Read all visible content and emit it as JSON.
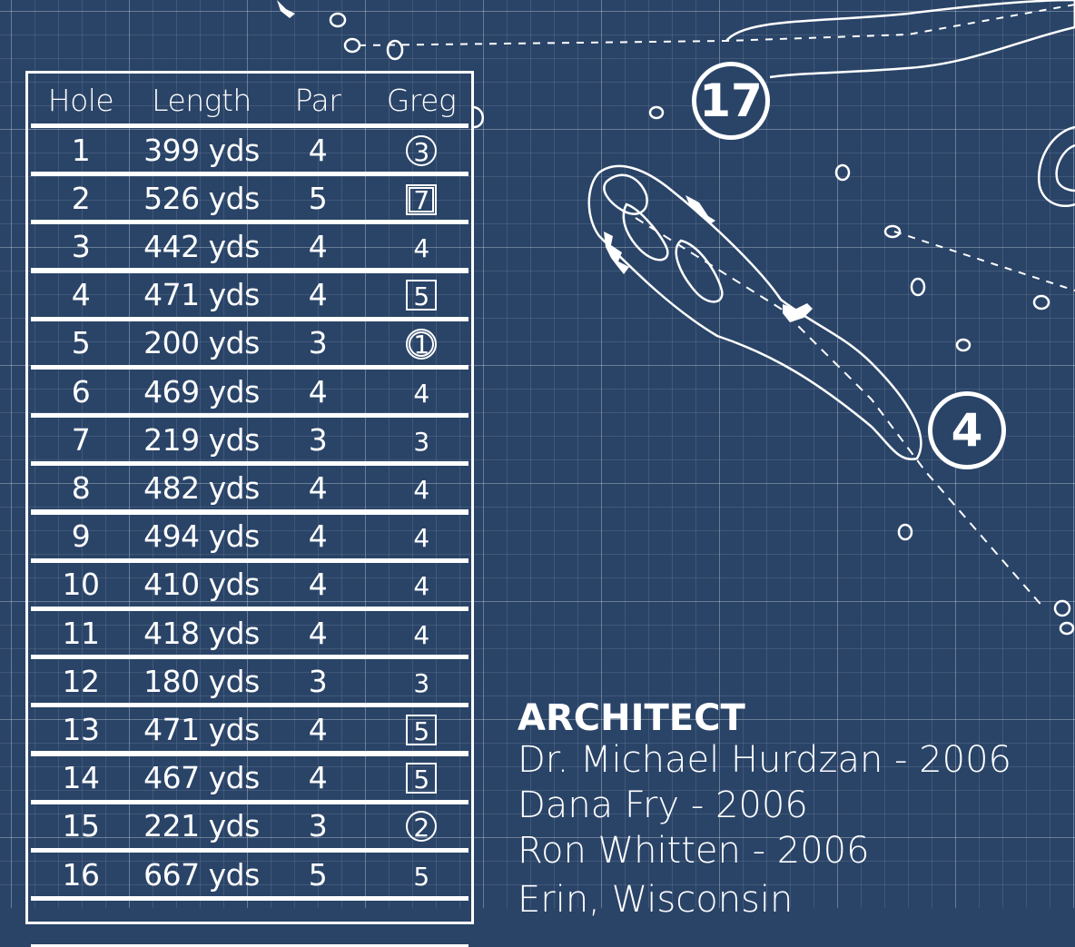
{
  "colors": {
    "background": "#2a4468",
    "lines": "#ffffff"
  },
  "scorecard": {
    "headers": [
      "Hole",
      "Length",
      "Par",
      "Greg"
    ],
    "rows": [
      {
        "hole": "1",
        "length": "399 yds",
        "par": "4",
        "score": "3",
        "mark": "circle"
      },
      {
        "hole": "2",
        "length": "526 yds",
        "par": "5",
        "score": "7",
        "mark": "double-square"
      },
      {
        "hole": "3",
        "length": "442 yds",
        "par": "4",
        "score": "4",
        "mark": "none"
      },
      {
        "hole": "4",
        "length": "471 yds",
        "par": "4",
        "score": "5",
        "mark": "square"
      },
      {
        "hole": "5",
        "length": "200 yds",
        "par": "3",
        "score": "1",
        "mark": "double-circle"
      },
      {
        "hole": "6",
        "length": "469 yds",
        "par": "4",
        "score": "4",
        "mark": "none"
      },
      {
        "hole": "7",
        "length": "219 yds",
        "par": "3",
        "score": "3",
        "mark": "none"
      },
      {
        "hole": "8",
        "length": "482 yds",
        "par": "4",
        "score": "4",
        "mark": "none"
      },
      {
        "hole": "9",
        "length": "494 yds",
        "par": "4",
        "score": "4",
        "mark": "none"
      },
      {
        "hole": "10",
        "length": "410 yds",
        "par": "4",
        "score": "4",
        "mark": "none"
      },
      {
        "hole": "11",
        "length": "418 yds",
        "par": "4",
        "score": "4",
        "mark": "none"
      },
      {
        "hole": "12",
        "length": "180 yds",
        "par": "3",
        "score": "3",
        "mark": "none"
      },
      {
        "hole": "13",
        "length": "471 yds",
        "par": "4",
        "score": "5",
        "mark": "square"
      },
      {
        "hole": "14",
        "length": "467 yds",
        "par": "4",
        "score": "5",
        "mark": "square"
      },
      {
        "hole": "15",
        "length": "221 yds",
        "par": "3",
        "score": "2",
        "mark": "circle"
      },
      {
        "hole": "16",
        "length": "667 yds",
        "par": "5",
        "score": "5",
        "mark": "none"
      }
    ]
  },
  "hole_markers": [
    "17",
    "4"
  ],
  "architect": {
    "title": "ARCHITECT",
    "lines": [
      "Dr. Michael Hurdzan  -  2006",
      "Dana Fry  -  2006",
      "Ron Whitten  -  2006"
    ],
    "location": "Erin, Wisconsin"
  }
}
